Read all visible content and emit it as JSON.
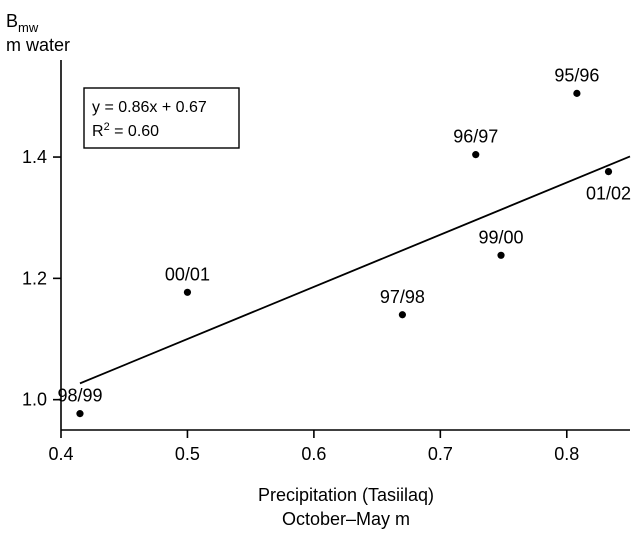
{
  "chart_data": {
    "type": "scatter",
    "ylabel_main": "B",
    "ylabel_sub": "mw",
    "ylabel_unit": "m water",
    "xlabel_line1": "Precipitation (Tasiilaq)",
    "xlabel_line2": "October–May m",
    "xlim": [
      0.4,
      0.85
    ],
    "ylim": [
      0.95,
      1.56
    ],
    "x_ticks": [
      {
        "value": 0.4,
        "label": "0.4"
      },
      {
        "value": 0.5,
        "label": "0.5"
      },
      {
        "value": 0.6,
        "label": "0.6"
      },
      {
        "value": 0.7,
        "label": "0.7"
      },
      {
        "value": 0.8,
        "label": "0.8"
      }
    ],
    "y_ticks": [
      {
        "value": 1.0,
        "label": "1.0"
      },
      {
        "value": 1.2,
        "label": "1.2"
      },
      {
        "value": 1.4,
        "label": "1.4"
      }
    ],
    "points": [
      {
        "label": "98/99",
        "x": 0.415,
        "y": 0.977,
        "label_pos": "above"
      },
      {
        "label": "00/01",
        "x": 0.5,
        "y": 1.177,
        "label_pos": "above"
      },
      {
        "label": "97/98",
        "x": 0.67,
        "y": 1.14,
        "label_pos": "above"
      },
      {
        "label": "99/00",
        "x": 0.748,
        "y": 1.238,
        "label_pos": "above"
      },
      {
        "label": "96/97",
        "x": 0.728,
        "y": 1.404,
        "label_pos": "above"
      },
      {
        "label": "95/96",
        "x": 0.808,
        "y": 1.505,
        "label_pos": "above"
      },
      {
        "label": "01/02",
        "x": 0.833,
        "y": 1.376,
        "label_pos": "below"
      }
    ],
    "regression": {
      "slope": 0.86,
      "intercept": 0.67,
      "x_start": 0.415,
      "x_end": 0.85,
      "equation": "y = 0.86x + 0.67",
      "r2_prefix": "R",
      "r2_sup": "2",
      "r2_value": " = 0.60"
    },
    "grid": false
  }
}
